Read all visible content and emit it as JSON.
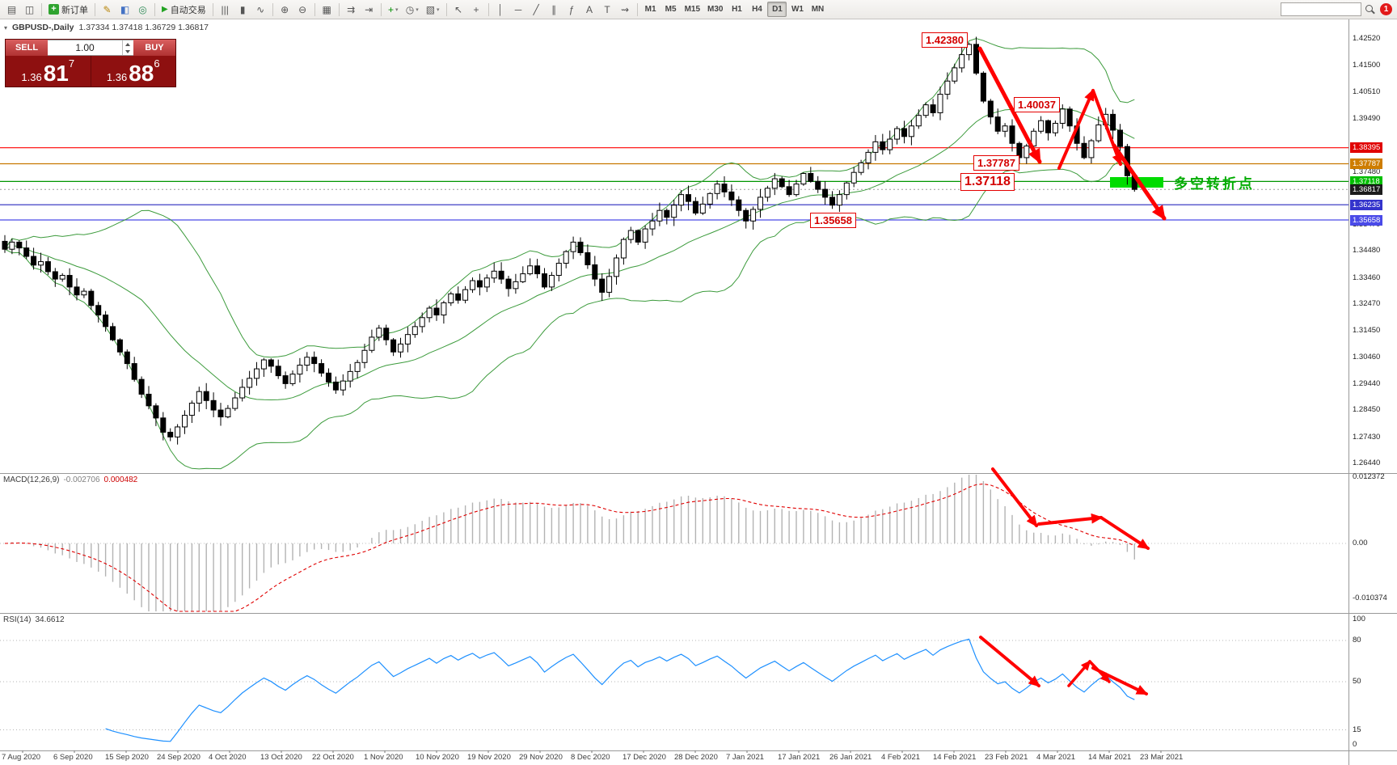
{
  "toolbar": {
    "left_icons": [
      {
        "name": "charts-toggle-icon",
        "glyph": "▤"
      },
      {
        "name": "tick-chart-icon",
        "glyph": "◫"
      }
    ],
    "new_order_label": "新订单",
    "new_order_icon": "+",
    "app_icons": [
      {
        "name": "metaeditor-icon",
        "glyph": "✎",
        "color": "#b8860b"
      },
      {
        "name": "market-watch-icon",
        "glyph": "◧",
        "color": "#4472c4"
      },
      {
        "name": "navigator-icon",
        "glyph": "◎",
        "color": "#2e8b57"
      }
    ],
    "autotrading_label": "自动交易",
    "autotrading_icon": "▶",
    "tool_groups": [
      [
        {
          "name": "bar-chart-icon",
          "glyph": "|||"
        },
        {
          "name": "candlestick-chart-icon",
          "glyph": "▮"
        },
        {
          "name": "line-chart-icon",
          "glyph": "∿"
        }
      ],
      [
        {
          "name": "zoom-in-icon",
          "glyph": "⊕"
        },
        {
          "name": "zoom-out-icon",
          "glyph": "⊖"
        }
      ],
      [
        {
          "name": "tile-windows-icon",
          "glyph": "▦"
        }
      ],
      [
        {
          "name": "auto-scroll-icon",
          "glyph": "⇉"
        },
        {
          "name": "chart-shift-icon",
          "glyph": "⇥"
        }
      ],
      [
        {
          "name": "indicators-icon",
          "glyph": "+",
          "color": "#009000",
          "caret": true
        },
        {
          "name": "periods-icon",
          "glyph": "◷",
          "caret": true
        },
        {
          "name": "template-icon",
          "glyph": "▧",
          "caret": true
        }
      ],
      [
        {
          "name": "cursor-icon",
          "glyph": "↖"
        },
        {
          "name": "crosshair-icon",
          "glyph": "+"
        }
      ],
      [
        {
          "name": "vertical-line-icon",
          "glyph": "│"
        },
        {
          "name": "horizontal-line-icon",
          "gly ph": "─",
          "glyph": "─"
        },
        {
          "name": "trendline-icon",
          "glyph": "╱"
        },
        {
          "name": "channel-icon",
          "glyph": "∥"
        },
        {
          "name": "fibonacci-icon",
          "glyph": "ƒ"
        },
        {
          "name": "text-icon",
          "glyph": "A"
        },
        {
          "name": "label-icon",
          "glyph": "T"
        },
        {
          "name": "arrows-icon",
          "glyph": "⇝"
        }
      ]
    ],
    "timeframes": [
      "M1",
      "M5",
      "M15",
      "M30",
      "H1",
      "H4",
      "D1",
      "W1",
      "MN"
    ],
    "active_timeframe": "D1",
    "search_placeholder": "",
    "notification_count": "1"
  },
  "chart": {
    "context_icon": "▾",
    "title": "GBPUSD-,Daily",
    "ohlc": "1.37334 1.37418 1.36729 1.36817",
    "trade_panel": {
      "sell_label": "SELL",
      "buy_label": "BUY",
      "lot_value": "1.00",
      "sell_price": {
        "prefix": "1.36",
        "big": "81",
        "sup": "7"
      },
      "buy_price": {
        "prefix": "1.36",
        "big": "88",
        "sup": "6"
      }
    },
    "callouts": [
      "1.42380",
      "1.40037",
      "1.37787",
      "1.37118",
      "1.35658"
    ],
    "turning_point_label": "多空转折点"
  },
  "chart_data": {
    "type": "candlestick",
    "symbol": "GBPUSD",
    "period": "Daily",
    "ohlc_display": {
      "open": "1.37334",
      "high": "1.37418",
      "low": "1.36729",
      "close": "1.36817"
    },
    "closes": [
      1.3455,
      1.3482,
      1.346,
      1.3428,
      1.3395,
      1.3408,
      1.337,
      1.3342,
      1.3356,
      1.3312,
      1.3282,
      1.3296,
      1.3242,
      1.3206,
      1.3162,
      1.3112,
      1.3066,
      1.3022,
      1.2962,
      1.2906,
      1.2862,
      1.2816,
      1.2762,
      1.2744,
      1.2782,
      1.2826,
      1.2872,
      1.2916,
      1.2882,
      1.2846,
      1.282,
      1.2852,
      1.2892,
      1.2932,
      1.2966,
      1.3002,
      1.3036,
      1.3012,
      1.2976,
      1.2946,
      1.2982,
      1.3016,
      1.3046,
      1.3022,
      1.2986,
      1.2952,
      1.2922,
      1.2956,
      1.2992,
      1.3026,
      1.3072,
      1.3122,
      1.3156,
      1.3112,
      1.3066,
      1.3096,
      1.3132,
      1.3162,
      1.3196,
      1.3232,
      1.3206,
      1.3252,
      1.3286,
      1.3262,
      1.3302,
      1.3336,
      1.3312,
      1.3346,
      1.3372,
      1.3342,
      1.3306,
      1.3332,
      1.3362,
      1.3392,
      1.3362,
      1.3312,
      1.3356,
      1.3402,
      1.3446,
      1.3482,
      1.3442,
      1.3396,
      1.3342,
      1.3292,
      1.3352,
      1.3422,
      1.3492,
      1.3526,
      1.3482,
      1.3532,
      1.3562,
      1.3602,
      1.3576,
      1.3622,
      1.3662,
      1.3636,
      1.3592,
      1.3626,
      1.3666,
      1.3702,
      1.3672,
      1.3642,
      1.3602,
      1.3562,
      1.3606,
      1.3652,
      1.3686,
      1.3722,
      1.3692,
      1.3662,
      1.3702,
      1.3742,
      1.3712,
      1.3682,
      1.3652,
      1.3622,
      1.3662,
      1.3706,
      1.3746,
      1.3782,
      1.3822,
      1.3862,
      1.3832,
      1.3872,
      1.3912,
      1.3882,
      1.3922,
      1.3962,
      1.4002,
      1.3972,
      1.4042,
      1.4092,
      1.4142,
      1.4192,
      1.4231,
      1.4122,
      1.4016,
      1.3956,
      1.3902,
      1.3922,
      1.3856,
      1.3802,
      1.3846,
      1.3902,
      1.3942,
      1.3896,
      1.3932,
      1.3986,
      1.3922,
      1.3856,
      1.3802,
      1.3866,
      1.3926,
      1.3966,
      1.3906,
      1.3844,
      1.37334,
      1.36817
    ],
    "key_candles": {
      "134": {
        "high": 1.4238
      },
      "141": {
        "low": 1.37787
      },
      "147": {
        "high": 1.40037
      },
      "157": {
        "high": 1.37418,
        "low": 1.36729
      }
    },
    "bollinger": {
      "period": 20,
      "deviation": 2
    },
    "current_price": 1.36817,
    "hlines": [
      {
        "price": 1.38395,
        "color": "#ff0000"
      },
      {
        "price": 1.37787,
        "color": "#c87800"
      },
      {
        "price": 1.37118,
        "color": "#009600"
      },
      {
        "price": 1.36235,
        "color": "#2828be"
      },
      {
        "price": 1.35658,
        "color": "#4a4ae8"
      }
    ],
    "price_ticks": [
      "1.42520",
      "1.41500",
      "1.40510",
      "1.39490",
      "1.37480",
      "1.35470",
      "1.34480",
      "1.33460",
      "1.32470",
      "1.31450",
      "1.30460",
      "1.29440",
      "1.28450",
      "1.27430",
      "1.26440"
    ],
    "price_tags": [
      {
        "value": "1.38395",
        "color": "#e00000"
      },
      {
        "value": "1.37787",
        "color": "#ce7d00"
      },
      {
        "value": "1.37118",
        "color": "#00be00"
      },
      {
        "value": "1.36817",
        "color": "#1c1c1c"
      },
      {
        "value": "1.36235",
        "color": "#3434cc"
      },
      {
        "value": "1.35658",
        "color": "#4a4ae8"
      }
    ],
    "colors": {
      "up_candle": "#ffffff",
      "down_candle": "#000000",
      "candle_outline": "#000000",
      "bollinger": "#3c9b3c",
      "rsi_line": "#1e90ff",
      "macd_histogram": "#b3b3b3",
      "macd_signal": "#e00000",
      "arrow": "#ff0000",
      "highlight": "#00dc00"
    }
  },
  "macd": {
    "label": "MACD(12,26,9)",
    "value_main": "-0.002706",
    "value_signal": "0.000482",
    "scale": [
      "0.012372",
      "0.00",
      "-0.010374"
    ]
  },
  "rsi": {
    "label": "RSI(14)",
    "value": "34.6612",
    "levels": [
      80,
      50,
      15
    ],
    "scale": [
      "100",
      "80",
      "50",
      "15",
      "0"
    ]
  },
  "time_axis": [
    "7 Aug 2020",
    "6 Sep 2020",
    "15 Sep 2020",
    "24 Sep 2020",
    "4 Oct 2020",
    "13 Oct 2020",
    "22 Oct 2020",
    "1 Nov 2020",
    "10 Nov 2020",
    "19 Nov 2020",
    "29 Nov 2020",
    "8 Dec 2020",
    "17 Dec 2020",
    "28 Dec 2020",
    "7 Jan 2021",
    "17 Jan 2021",
    "26 Jan 2021",
    "4 Feb 2021",
    "14 Feb 2021",
    "23 Feb 2021",
    "4 Mar 2021",
    "14 Mar 2021",
    "23 Mar 2021"
  ]
}
